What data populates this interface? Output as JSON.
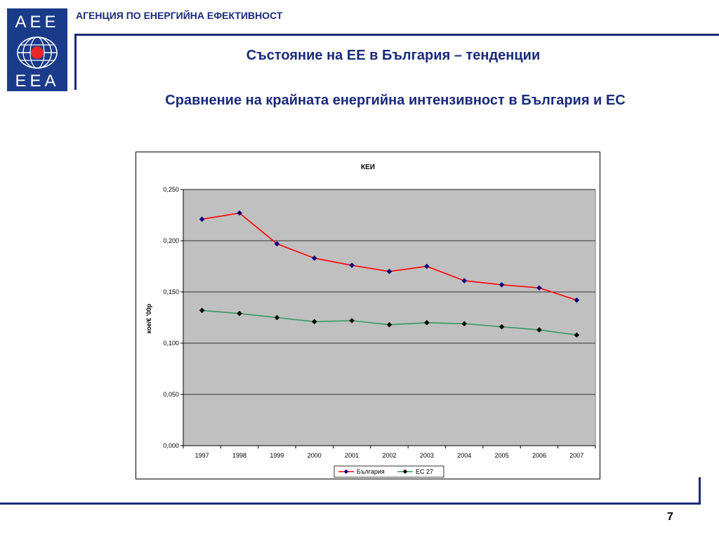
{
  "header": {
    "logo_top": "AEE",
    "logo_bottom": "EEA",
    "agency": "АГЕНЦИЯ ПО ЕНЕРГИЙНА ЕФЕКТИВНОСТ"
  },
  "slide": {
    "title": "Състояние на ЕЕ в България – тенденции",
    "subtitle": "Сравнение на крайната енергийна интензивност в България и ЕС",
    "page_number": "7"
  },
  "colors": {
    "brand": "#1a2a7a",
    "plot_bg": "#c0c0c0"
  },
  "chart_data": {
    "type": "line",
    "title": "КЕИ",
    "xlabel": "",
    "ylabel": "кое/€ '00р",
    "categories": [
      "1997",
      "1998",
      "1999",
      "2000",
      "2001",
      "2002",
      "2003",
      "2004",
      "2005",
      "2006",
      "2007"
    ],
    "ylim": [
      0,
      0.25
    ],
    "yticks": [
      "0,000",
      "0,050",
      "0,100",
      "0,150",
      "0,200",
      "0,250"
    ],
    "grid": true,
    "legend_position": "bottom",
    "series": [
      {
        "name": "България",
        "color": "#ff0000",
        "marker_color": "#000080",
        "values": [
          0.221,
          0.227,
          0.197,
          0.183,
          0.176,
          0.17,
          0.175,
          0.161,
          0.157,
          0.154,
          0.142
        ]
      },
      {
        "name": "ЕС  27",
        "color": "#339966",
        "marker_color": "#000000",
        "values": [
          0.132,
          0.129,
          0.125,
          0.121,
          0.122,
          0.118,
          0.12,
          0.119,
          0.116,
          0.113,
          0.108
        ]
      }
    ]
  }
}
